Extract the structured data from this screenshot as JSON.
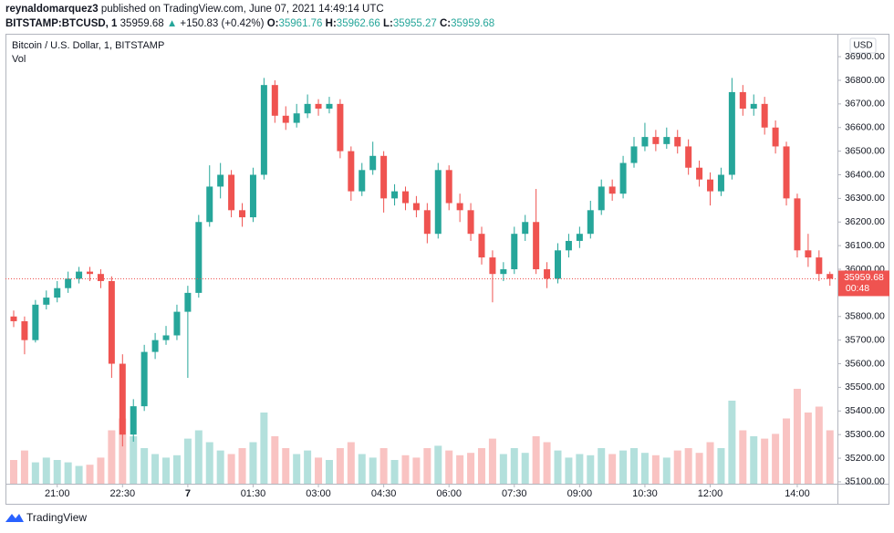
{
  "header": {
    "author": "reynaldomarquez3",
    "published": "published on TradingView.com, June 07, 2021 14:49:14 UTC",
    "symbol": "BITSTAMP:BTCUSD, 1",
    "price": "35959.68",
    "change_arrow": "▲",
    "change": "+150.83 (+0.42%)",
    "ohlc": [
      {
        "label": "O:",
        "value": "35961.76"
      },
      {
        "label": "H:",
        "value": "35962.66"
      },
      {
        "label": "L:",
        "value": "35955.27"
      },
      {
        "label": "C:",
        "value": "35959.68"
      }
    ]
  },
  "footer": {
    "brand": "TradingView"
  },
  "chart_data": {
    "type": "candlestick",
    "title": "Bitcoin / U.S. Dollar, 1, BITSTAMP",
    "volume_label": "Vol",
    "currency": "USD",
    "up_color": "#26a69a",
    "down_color": "#ef5350",
    "x": [
      "20:00",
      "20:15",
      "20:30",
      "20:45",
      "21:00",
      "21:15",
      "21:30",
      "21:45",
      "22:00",
      "22:15",
      "22:30",
      "22:45",
      "23:00",
      "23:15",
      "23:30",
      "23:45",
      "00:00",
      "00:15",
      "00:30",
      "00:45",
      "01:00",
      "01:15",
      "01:30",
      "01:45",
      "02:00",
      "02:15",
      "02:30",
      "02:45",
      "03:00",
      "03:15",
      "03:30",
      "03:45",
      "04:00",
      "04:15",
      "04:30",
      "04:45",
      "05:00",
      "05:15",
      "05:30",
      "05:45",
      "06:00",
      "06:15",
      "06:30",
      "06:45",
      "07:00",
      "07:15",
      "07:30",
      "07:45",
      "08:00",
      "08:15",
      "08:30",
      "08:45",
      "09:00",
      "09:15",
      "09:30",
      "09:45",
      "10:00",
      "10:15",
      "10:30",
      "10:45",
      "11:00",
      "11:15",
      "11:30",
      "11:45",
      "12:00",
      "12:15",
      "12:30",
      "12:45",
      "13:00",
      "13:15",
      "13:30",
      "13:45",
      "14:00",
      "14:15",
      "14:30",
      "14:45"
    ],
    "open": [
      35800,
      35780,
      35700,
      35850,
      35880,
      35920,
      35960,
      35990,
      35980,
      35950,
      35600,
      35300,
      35420,
      35650,
      35700,
      35720,
      35820,
      35900,
      36200,
      36350,
      36400,
      36250,
      36220,
      36400,
      36780,
      36650,
      36620,
      36660,
      36700,
      36680,
      36700,
      36500,
      36330,
      36420,
      36480,
      36300,
      36330,
      36280,
      36250,
      36150,
      36420,
      36280,
      36250,
      36150,
      36050,
      35980,
      36000,
      36150,
      36200,
      36000,
      35960,
      36080,
      36120,
      36150,
      36250,
      36350,
      36320,
      36450,
      36520,
      36560,
      36530,
      36560,
      36520,
      36430,
      36380,
      36330,
      36400,
      36750,
      36680,
      36700,
      36600,
      36520,
      36300,
      36080,
      36050,
      35980
    ],
    "high": [
      35825,
      35800,
      35870,
      35910,
      35950,
      35990,
      36010,
      36010,
      36000,
      35970,
      35640,
      35450,
      35680,
      35730,
      35760,
      35850,
      35930,
      36230,
      36440,
      36450,
      36420,
      36280,
      36430,
      36810,
      36800,
      36690,
      36700,
      36740,
      36720,
      36730,
      36720,
      36520,
      36450,
      36540,
      36500,
      36360,
      36350,
      36310,
      36280,
      36450,
      36440,
      36320,
      36280,
      36180,
      36080,
      36030,
      36180,
      36230,
      36340,
      36030,
      36110,
      36150,
      36180,
      36290,
      36380,
      36380,
      36480,
      36560,
      36620,
      36590,
      36600,
      36590,
      36550,
      36460,
      36410,
      36430,
      36810,
      36780,
      36740,
      36730,
      36630,
      36540,
      36320,
      36150,
      36080,
      35990
    ],
    "low": [
      35755,
      35640,
      35690,
      35830,
      35860,
      35900,
      35940,
      35950,
      35920,
      35540,
      35250,
      35270,
      35400,
      35620,
      35680,
      35700,
      35540,
      35880,
      36180,
      36300,
      36220,
      36180,
      36200,
      36380,
      36620,
      36590,
      36600,
      36640,
      36650,
      36660,
      36470,
      36290,
      36310,
      36400,
      36240,
      36270,
      36250,
      36220,
      36110,
      36130,
      36250,
      36200,
      36120,
      36020,
      35860,
      35950,
      35980,
      36120,
      35980,
      35920,
      35940,
      36050,
      36090,
      36130,
      36230,
      36290,
      36300,
      36430,
      36500,
      36500,
      36510,
      36490,
      36400,
      36350,
      36270,
      36310,
      36380,
      36650,
      36650,
      36570,
      36490,
      36270,
      36050,
      36010,
      35950,
      35930
    ],
    "close": [
      35780,
      35700,
      35850,
      35880,
      35920,
      35960,
      35990,
      35980,
      35950,
      35600,
      35300,
      35420,
      35650,
      35700,
      35720,
      35820,
      35900,
      36200,
      36350,
      36400,
      36250,
      36220,
      36400,
      36780,
      36650,
      36620,
      36660,
      36700,
      36680,
      36700,
      36500,
      36330,
      36420,
      36480,
      36300,
      36330,
      36280,
      36250,
      36150,
      36420,
      36280,
      36250,
      36150,
      36050,
      35980,
      36000,
      36150,
      36200,
      36000,
      35960,
      36080,
      36120,
      36150,
      36250,
      36350,
      36320,
      36450,
      36520,
      36560,
      36530,
      36560,
      36520,
      36430,
      36380,
      36330,
      36400,
      36750,
      36680,
      36700,
      36600,
      36520,
      36300,
      36080,
      36050,
      35980,
      35959.68
    ],
    "volume": [
      20,
      28,
      18,
      22,
      20,
      18,
      15,
      16,
      22,
      45,
      55,
      40,
      30,
      25,
      22,
      24,
      38,
      45,
      35,
      28,
      25,
      30,
      35,
      60,
      40,
      30,
      25,
      28,
      22,
      20,
      30,
      35,
      25,
      22,
      30,
      20,
      24,
      22,
      30,
      32,
      28,
      24,
      26,
      30,
      38,
      25,
      30,
      26,
      40,
      35,
      28,
      22,
      25,
      24,
      30,
      25,
      28,
      30,
      26,
      24,
      22,
      28,
      30,
      26,
      35,
      30,
      70,
      45,
      40,
      38,
      42,
      55,
      80,
      60,
      65,
      45
    ],
    "ylim": [
      35092,
      36997
    ],
    "yticks": [
      {
        "value": 35100,
        "label": "35100.00"
      },
      {
        "value": 35200,
        "label": "35200.00"
      },
      {
        "value": 35300,
        "label": "35300.00"
      },
      {
        "value": 35400,
        "label": "35400.00"
      },
      {
        "value": 35500,
        "label": "35500.00"
      },
      {
        "value": 35600,
        "label": "35600.00"
      },
      {
        "value": 35700,
        "label": "35700.00"
      },
      {
        "value": 35800,
        "label": "35800.00"
      },
      {
        "value": 35900,
        "label": "35900.00"
      },
      {
        "value": 36000,
        "label": "36000.00"
      },
      {
        "value": 36100,
        "label": "36100.00"
      },
      {
        "value": 36200,
        "label": "36200.00"
      },
      {
        "value": 36300,
        "label": "36300.00"
      },
      {
        "value": 36400,
        "label": "36400.00"
      },
      {
        "value": 36500,
        "label": "36500.00"
      },
      {
        "value": 36600,
        "label": "36600.00"
      },
      {
        "value": 36700,
        "label": "36700.00"
      },
      {
        "value": 36800,
        "label": "36800.00"
      },
      {
        "value": 36900,
        "label": "36900.00"
      }
    ],
    "xticks": [
      "21:00",
      "22:30",
      {
        "value": "00:00",
        "label": "7"
      },
      "01:30",
      "03:00",
      "04:30",
      "06:00",
      "07:30",
      "09:00",
      "10:30",
      "12:00",
      "14:00"
    ],
    "last_price": 35959.68,
    "countdown": "00:48"
  }
}
